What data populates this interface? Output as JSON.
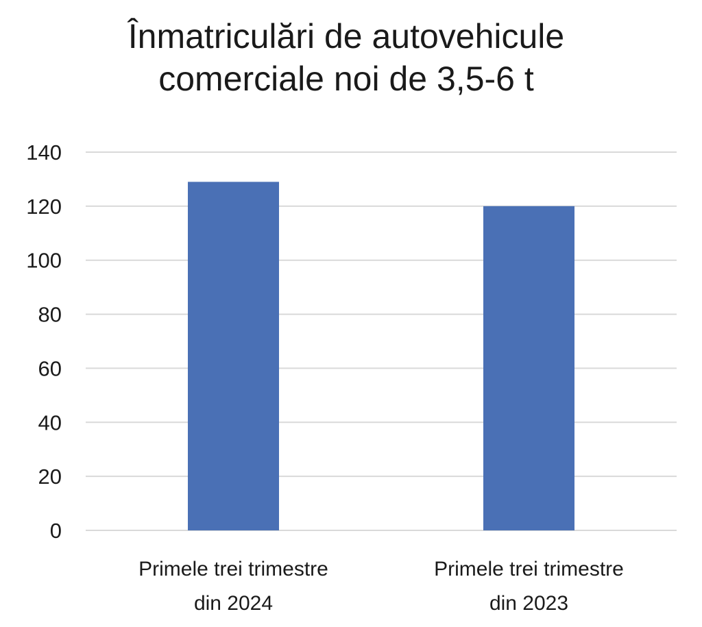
{
  "chart_data": {
    "type": "bar",
    "title_lines": [
      "Înmatriculări de autovehicule",
      "comerciale noi de 3,5-6 t"
    ],
    "categories": [
      [
        "Primele trei trimestre",
        "din 2024"
      ],
      [
        "Primele trei trimestre",
        "din 2023"
      ]
    ],
    "values": [
      129,
      120
    ],
    "ylim": [
      0,
      140
    ],
    "yticks": [
      0,
      20,
      40,
      60,
      80,
      100,
      120,
      140
    ],
    "grid": true,
    "bar_color": "#4a70b5",
    "grid_color": "#d9d9d9"
  }
}
